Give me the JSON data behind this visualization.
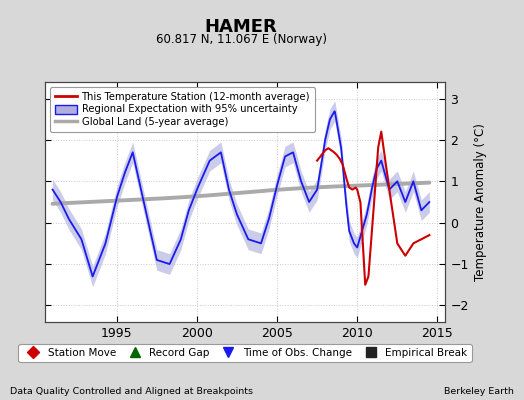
{
  "title": "HAMER",
  "subtitle": "60.817 N, 11.067 E (Norway)",
  "ylabel": "Temperature Anomaly (°C)",
  "footer_left": "Data Quality Controlled and Aligned at Breakpoints",
  "footer_right": "Berkeley Earth",
  "xlim": [
    1990.5,
    2015.5
  ],
  "ylim": [
    -2.4,
    3.4
  ],
  "yticks": [
    -2,
    -1,
    0,
    1,
    2,
    3
  ],
  "xticks": [
    1995,
    2000,
    2005,
    2010,
    2015
  ],
  "bg_color": "#d8d8d8",
  "plot_bg_color": "#ffffff",
  "red_color": "#cc0000",
  "blue_color": "#1a1aee",
  "blue_fill_color": "#b0b0e0",
  "gray_color": "#aaaaaa",
  "legend_labels": [
    "This Temperature Station (12-month average)",
    "Regional Expectation with 95% uncertainty",
    "Global Land (5-year average)"
  ],
  "bottom_legend": [
    {
      "marker": "D",
      "color": "#cc0000",
      "label": "Station Move"
    },
    {
      "marker": "^",
      "color": "#006600",
      "label": "Record Gap"
    },
    {
      "marker": "v",
      "color": "#1a1aee",
      "label": "Time of Obs. Change"
    },
    {
      "marker": "s",
      "color": "#222222",
      "label": "Empirical Break"
    }
  ]
}
